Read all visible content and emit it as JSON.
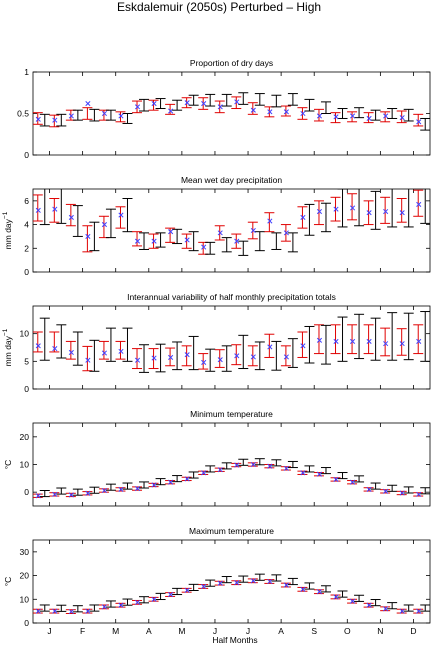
{
  "figure_title": "Eskdalemuir (2050s) Perturbed – High",
  "xlabel": "Half Months",
  "month_labels": [
    "J",
    "F",
    "M",
    "A",
    "M",
    "J",
    "J",
    "A",
    "S",
    "O",
    "N",
    "D"
  ],
  "colors": {
    "observed": "#e00000",
    "model": "#000000",
    "cross": "#4040ff",
    "axis": "#000000"
  },
  "chart_data": [
    {
      "type": "errorbar",
      "title": "Proportion of dry days",
      "ylabel": "",
      "ylim": [
        0,
        1
      ],
      "yticks": [
        0,
        0.5,
        1
      ],
      "ytick_labels": [
        "0",
        "0.5",
        "1"
      ],
      "observed": {
        "center": [
          0.44,
          0.41,
          0.48,
          0.5,
          0.48,
          0.46,
          0.58,
          0.6,
          0.55,
          0.63,
          0.62,
          0.58,
          0.63,
          0.56,
          0.52,
          0.53,
          0.5,
          0.48,
          0.45,
          0.46,
          0.45,
          0.46,
          0.46,
          0.42
        ],
        "half_range": [
          0.07,
          0.07,
          0.06,
          0.07,
          0.06,
          0.06,
          0.07,
          0.06,
          0.06,
          0.06,
          0.07,
          0.07,
          0.07,
          0.07,
          0.06,
          0.06,
          0.07,
          0.07,
          0.06,
          0.06,
          0.06,
          0.06,
          0.07,
          0.07
        ]
      },
      "model": {
        "center": [
          0.42,
          0.42,
          0.48,
          0.48,
          0.48,
          0.44,
          0.6,
          0.62,
          0.6,
          0.66,
          0.66,
          0.66,
          0.68,
          0.67,
          0.65,
          0.67,
          0.6,
          0.57,
          0.5,
          0.51,
          0.48,
          0.5,
          0.48,
          0.37
        ],
        "half_range": [
          0.07,
          0.07,
          0.06,
          0.07,
          0.06,
          0.06,
          0.07,
          0.06,
          0.06,
          0.06,
          0.07,
          0.07,
          0.07,
          0.07,
          0.07,
          0.07,
          0.07,
          0.07,
          0.06,
          0.06,
          0.06,
          0.06,
          0.07,
          0.07
        ]
      },
      "cross": [
        0.43,
        0.42,
        0.47,
        0.62,
        0.5,
        0.47,
        0.58,
        0.62,
        0.53,
        0.63,
        0.62,
        0.58,
        0.64,
        0.54,
        0.52,
        0.52,
        0.5,
        0.47,
        0.46,
        0.47,
        0.44,
        0.47,
        0.45,
        0.4
      ]
    },
    {
      "type": "errorbar",
      "title": "Mean wet day precipitation",
      "ylabel": "mm day",
      "ylabel_sup": "−1",
      "ylim": [
        0,
        7
      ],
      "yticks": [
        0,
        2,
        4,
        6
      ],
      "ytick_labels": [
        "0",
        "2",
        "4",
        "6"
      ],
      "observed": {
        "center": [
          5.4,
          5.2,
          4.8,
          2.8,
          3.8,
          4.6,
          2.8,
          2.6,
          3.1,
          2.6,
          2.0,
          3.3,
          2.6,
          3.5,
          4.2,
          3.3,
          4.6,
          5.0,
          5.3,
          5.5,
          5.0,
          5.2,
          5.2,
          5.8
        ],
        "half_range": [
          1.1,
          1.0,
          0.9,
          1.1,
          0.9,
          0.9,
          0.6,
          0.6,
          0.6,
          0.6,
          0.5,
          0.6,
          0.6,
          0.7,
          0.8,
          0.7,
          0.9,
          1.0,
          1.0,
          1.1,
          1.0,
          1.1,
          1.0,
          1.1
        ]
      },
      "model": {
        "center": [
          5.6,
          5.6,
          4.3,
          3.0,
          4.1,
          4.8,
          2.6,
          2.7,
          3.0,
          2.6,
          2.0,
          2.3,
          2.0,
          2.6,
          2.6,
          2.5,
          4.4,
          4.6,
          5.4,
          5.6,
          5.2,
          5.5,
          5.5,
          5.8
        ],
        "half_range": [
          1.6,
          1.5,
          1.3,
          1.2,
          1.2,
          1.4,
          0.7,
          0.6,
          0.6,
          0.8,
          0.5,
          0.6,
          0.6,
          0.8,
          0.7,
          0.8,
          1.3,
          1.2,
          1.6,
          1.7,
          1.6,
          1.7,
          1.7,
          1.7
        ]
      },
      "cross": [
        5.2,
        5.3,
        4.6,
        3.0,
        4.0,
        4.8,
        2.6,
        2.6,
        3.4,
        2.7,
        2.1,
        3.3,
        2.6,
        3.5,
        4.3,
        3.3,
        4.6,
        5.1,
        5.3,
        5.4,
        5.0,
        5.1,
        5.0,
        5.7
      ]
    },
    {
      "type": "errorbar",
      "title": "Interannual variability of half monthly precipitation totals",
      "ylabel": "mm day",
      "ylabel_sup": "−1",
      "ylim": [
        0,
        15
      ],
      "yticks": [
        0,
        5,
        10
      ],
      "ytick_labels": [
        "0",
        "5",
        "10"
      ],
      "observed": {
        "center": [
          8.5,
          8.5,
          7.0,
          5.5,
          7.0,
          7.0,
          5.5,
          5.5,
          5.8,
          6.0,
          5.0,
          5.5,
          6.2,
          6.0,
          7.8,
          6.0,
          8.0,
          9.0,
          9.0,
          9.0,
          9.0,
          8.5,
          8.5,
          9.0
        ],
        "half_range": [
          1.8,
          1.8,
          1.6,
          2.2,
          1.6,
          1.6,
          1.8,
          1.8,
          1.6,
          1.8,
          1.4,
          1.6,
          1.8,
          1.8,
          2.1,
          1.8,
          2.3,
          2.6,
          2.6,
          2.6,
          2.6,
          2.5,
          2.4,
          2.6
        ]
      },
      "model": {
        "center": [
          9.0,
          8.6,
          7.3,
          6.0,
          8.0,
          8.0,
          5.5,
          5.6,
          6.0,
          6.5,
          5.2,
          5.5,
          6.7,
          6.0,
          6.0,
          6.5,
          8.0,
          8.0,
          9.0,
          9.5,
          9.0,
          9.5,
          9.5,
          9.5
        ],
        "half_range": [
          3.8,
          3.0,
          3.0,
          2.8,
          3.0,
          3.0,
          2.5,
          2.5,
          2.5,
          3.0,
          2.0,
          2.3,
          3.0,
          2.5,
          2.6,
          2.6,
          3.3,
          3.5,
          4.0,
          4.0,
          3.8,
          4.3,
          4.2,
          4.5
        ]
      },
      "cross": [
        7.8,
        7.3,
        6.6,
        5.2,
        6.5,
        6.8,
        5.2,
        5.6,
        5.7,
        6.2,
        4.8,
        5.3,
        6.0,
        5.8,
        7.6,
        5.8,
        7.8,
        8.8,
        8.6,
        8.6,
        8.6,
        8.2,
        8.2,
        8.6
      ]
    },
    {
      "type": "errorbar",
      "title": "Minimum temperature",
      "ylabel": "°C",
      "ylim": [
        -5,
        25
      ],
      "yticks": [
        0,
        10,
        20
      ],
      "ytick_labels": [
        "0",
        "10",
        "20"
      ],
      "observed": {
        "center": [
          -1.3,
          -0.8,
          -1.0,
          -0.4,
          0.6,
          1.0,
          1.3,
          2.6,
          3.6,
          4.8,
          7.0,
          8.1,
          9.8,
          10.0,
          9.4,
          8.6,
          7.0,
          6.5,
          4.6,
          3.6,
          1.0,
          0.3,
          -0.3,
          -0.8
        ],
        "half_range": [
          0.6,
          0.6,
          0.6,
          0.6,
          0.6,
          0.6,
          0.6,
          0.6,
          0.6,
          0.6,
          0.6,
          0.6,
          0.6,
          0.6,
          0.6,
          0.6,
          0.6,
          0.6,
          0.6,
          0.6,
          0.6,
          0.6,
          0.6,
          0.6
        ]
      },
      "model": {
        "center": [
          -0.5,
          0.4,
          0.0,
          0.7,
          1.8,
          2.2,
          2.6,
          3.8,
          4.9,
          6.2,
          8.4,
          9.5,
          10.8,
          11.0,
          10.6,
          10.0,
          8.4,
          7.8,
          6.0,
          4.8,
          2.2,
          1.4,
          0.8,
          0.5
        ],
        "half_range": [
          1.1,
          1.1,
          1.1,
          1.1,
          1.1,
          1.1,
          1.1,
          1.1,
          1.1,
          1.1,
          1.1,
          1.1,
          1.1,
          1.1,
          1.1,
          1.1,
          1.1,
          1.1,
          1.1,
          1.1,
          1.1,
          1.1,
          1.1,
          1.1
        ]
      },
      "cross": [
        -1.3,
        -0.8,
        -1.0,
        -0.4,
        0.6,
        1.0,
        1.3,
        2.6,
        3.6,
        4.8,
        7.0,
        8.1,
        9.8,
        10.0,
        9.4,
        8.6,
        7.0,
        6.5,
        4.6,
        3.6,
        1.0,
        0.3,
        -0.3,
        -0.8
      ]
    },
    {
      "type": "errorbar",
      "title": "Maximum temperature",
      "ylabel": "°C",
      "ylim": [
        0,
        35
      ],
      "yticks": [
        0,
        10,
        20,
        30
      ],
      "ytick_labels": [
        "0",
        "10",
        "20",
        "30"
      ],
      "observed": {
        "center": [
          5.0,
          5.0,
          4.8,
          5.0,
          6.8,
          7.5,
          8.7,
          10.0,
          12.0,
          13.8,
          15.4,
          16.8,
          17.0,
          17.8,
          17.5,
          16.0,
          14.2,
          13.2,
          11.0,
          9.2,
          7.5,
          6.0,
          5.0,
          5.0
        ],
        "half_range": [
          0.8,
          0.8,
          0.8,
          0.8,
          0.8,
          0.8,
          0.8,
          0.8,
          0.8,
          0.8,
          0.8,
          0.8,
          0.8,
          0.8,
          0.8,
          0.8,
          0.8,
          0.8,
          0.8,
          0.8,
          0.8,
          0.8,
          0.8,
          0.8
        ]
      },
      "model": {
        "center": [
          6.3,
          6.2,
          6.0,
          6.3,
          8.0,
          8.8,
          9.8,
          11.2,
          13.3,
          15.0,
          16.8,
          18.3,
          18.5,
          19.3,
          19.0,
          17.5,
          15.6,
          14.4,
          12.2,
          10.4,
          8.6,
          7.3,
          6.3,
          6.3
        ],
        "half_range": [
          1.3,
          1.3,
          1.3,
          1.3,
          1.3,
          1.3,
          1.3,
          1.3,
          1.3,
          1.3,
          1.3,
          1.3,
          1.3,
          1.3,
          1.3,
          1.3,
          1.3,
          1.3,
          1.3,
          1.3,
          1.3,
          1.3,
          1.3,
          1.3
        ]
      },
      "cross": [
        5.0,
        5.0,
        4.8,
        5.0,
        6.8,
        7.5,
        8.7,
        10.0,
        12.0,
        13.8,
        15.4,
        16.8,
        17.0,
        17.8,
        17.5,
        16.0,
        14.2,
        13.2,
        11.0,
        9.2,
        7.5,
        6.0,
        5.0,
        5.0
      ]
    }
  ]
}
